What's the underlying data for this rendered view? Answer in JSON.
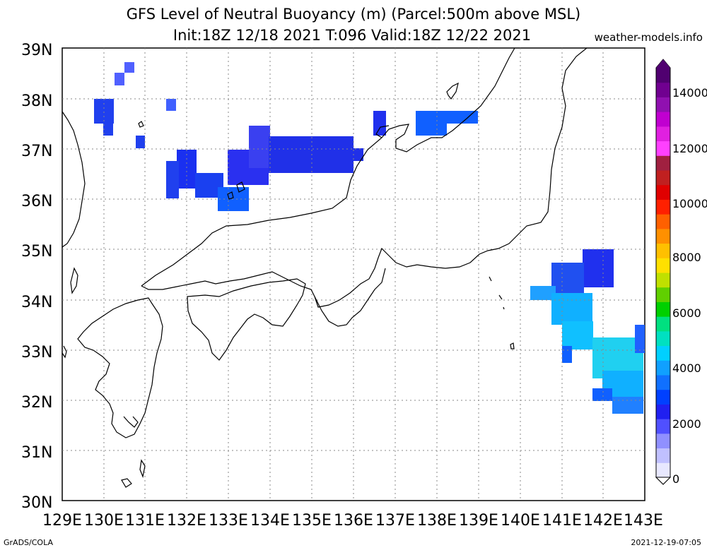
{
  "title_line1": "GFS Level of Neutral Buoyancy (m) (Parcel:500m above MSL)",
  "title_line2": "Init:18Z 12/18 2021 T:096 Valid:18Z 12/22 2021",
  "credit": "weather-models.info",
  "footer_left": "GrADS/COLA",
  "footer_right": "2021-12-19-07:05",
  "lat_labels": [
    "39N",
    "38N",
    "37N",
    "36N",
    "35N",
    "34N",
    "33N",
    "32N",
    "31N",
    "30N"
  ],
  "lon_labels": [
    "129E",
    "130E",
    "131E",
    "132E",
    "133E",
    "134E",
    "135E",
    "136E",
    "137E",
    "138E",
    "139E",
    "140E",
    "141E",
    "142E",
    "143E"
  ],
  "colorbar_labels": [
    "14000",
    "12000",
    "10000",
    "8000",
    "6000",
    "4000",
    "2000",
    "0"
  ],
  "colorbar_colors": [
    "#e8e8ff",
    "#c0c0ff",
    "#9090ff",
    "#5050ff",
    "#2020f0",
    "#0040ff",
    "#1070ff",
    "#10a0ff",
    "#00d0ff",
    "#00e0c0",
    "#00e080",
    "#00d000",
    "#60d000",
    "#c0e000",
    "#ffe000",
    "#ffc000",
    "#ff9000",
    "#ff6000",
    "#ff2000",
    "#e00000",
    "#c02020",
    "#a02040",
    "#ff40ff",
    "#e020e0",
    "#c000d0",
    "#9010b0",
    "#700090",
    "#500070"
  ],
  "regions": {
    "north_blob_color": "#2030f0",
    "east_blob_color": "#10c0ff"
  }
}
